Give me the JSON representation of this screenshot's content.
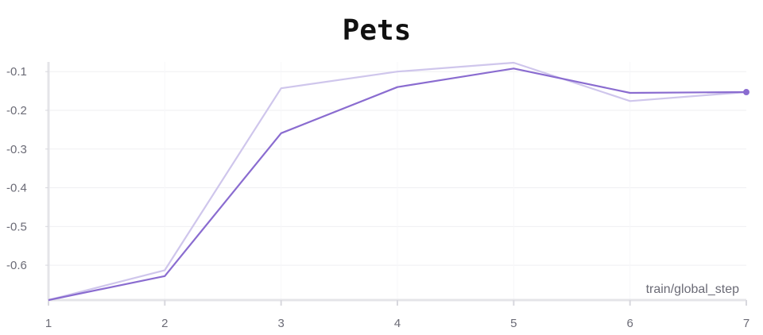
{
  "chart_data": {
    "type": "line",
    "title": "Pets",
    "xlabel": "train/global_step",
    "ylabel": "",
    "x": [
      1,
      2,
      3,
      4,
      5,
      6,
      7
    ],
    "x_ticks": [
      "1",
      "2",
      "3",
      "4",
      "5",
      "6",
      "7"
    ],
    "y_ticks": [
      "-0.1",
      "-0.2",
      "-0.3",
      "-0.4",
      "-0.5",
      "-0.6"
    ],
    "xlim": [
      1,
      7
    ],
    "ylim": [
      -0.69,
      -0.075
    ],
    "grid": true,
    "series": [
      {
        "color": "#cfc6ec",
        "values": [
          -0.69,
          -0.613,
          -0.143,
          -0.1,
          -0.077,
          -0.176,
          -0.153
        ]
      },
      {
        "color": "#8a6cd0",
        "values": [
          -0.69,
          -0.628,
          -0.259,
          -0.14,
          -0.092,
          -0.155,
          -0.153
        ]
      }
    ]
  }
}
